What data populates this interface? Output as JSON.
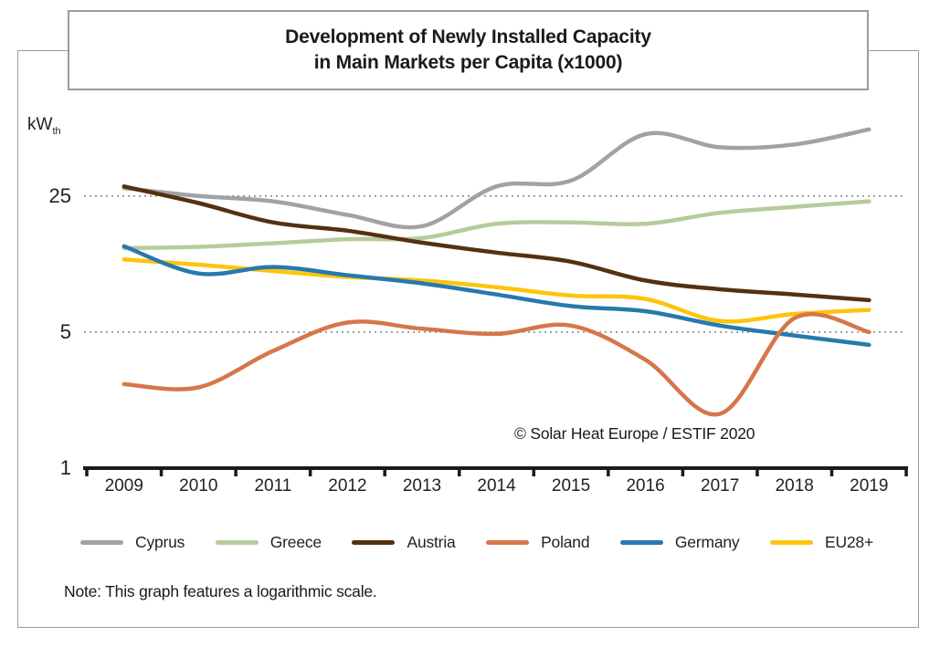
{
  "title": {
    "line1": "Development of Newly Installed Capacity",
    "line2": "in Main Markets per Capita (x1000)"
  },
  "y_unit": {
    "main": "kW",
    "sub": "th"
  },
  "copyright": "© Solar Heat Europe / ESTIF 2020",
  "note": "Note: This graph features a logarithmic scale.",
  "chart_data": {
    "type": "line",
    "scale": "logarithmic",
    "title": "Development of Newly Installed Capacity in Main Markets per Capita (x1000)",
    "ylabel": "kWth",
    "xlabel": "",
    "x": [
      2009,
      2010,
      2011,
      2012,
      2013,
      2014,
      2015,
      2016,
      2017,
      2018,
      2019
    ],
    "yticks": [
      25,
      5,
      1
    ],
    "gridlines_at": [
      25,
      5
    ],
    "ylim": [
      1,
      60
    ],
    "grid": "dotted-horizontal",
    "legend_position": "bottom",
    "series": [
      {
        "name": "Cyprus",
        "color": "#a2a2a2",
        "values": [
          27.5,
          25,
          23.5,
          20,
          17.5,
          28,
          30,
          52,
          44.5,
          46,
          55
        ]
      },
      {
        "name": "Greece",
        "color": "#b5cc9a",
        "values": [
          13.5,
          13.7,
          14.3,
          15,
          15.2,
          18,
          18.3,
          18,
          20.5,
          22,
          23.5
        ]
      },
      {
        "name": "Austria",
        "color": "#54310f",
        "values": [
          28,
          23,
          18.3,
          16.6,
          14.4,
          12.8,
          11.5,
          9.2,
          8.3,
          7.8,
          7.3
        ]
      },
      {
        "name": "Poland",
        "color": "#d6764a",
        "values": [
          2.7,
          2.6,
          4.0,
          5.6,
          5.2,
          4.9,
          5.4,
          3.6,
          1.9,
          5.9,
          5.0
        ]
      },
      {
        "name": "Germany",
        "color": "#2779ae",
        "values": [
          13.8,
          10.0,
          10.8,
          9.8,
          8.9,
          7.8,
          6.8,
          6.4,
          5.4,
          4.8,
          4.3
        ]
      },
      {
        "name": "EU28+",
        "color": "#fdc40d",
        "values": [
          11.8,
          11.1,
          10.3,
          9.6,
          9.2,
          8.5,
          7.7,
          7.4,
          5.7,
          6.2,
          6.5
        ]
      }
    ],
    "draw_order": [
      "Cyprus",
      "Greece",
      "EU28+",
      "Germany",
      "Austria",
      "Poland"
    ]
  }
}
